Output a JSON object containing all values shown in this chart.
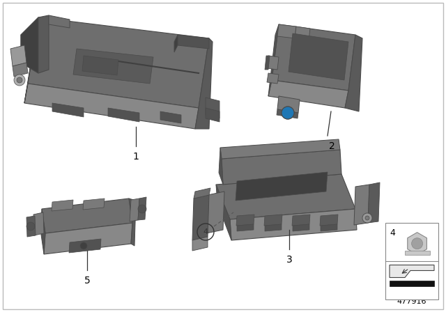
{
  "background_color": "#ffffff",
  "border_color": "#bbbbbb",
  "diagram_number": "477916",
  "text_color": "#000000",
  "number_fontsize": 10,
  "outline_color": "#4a4a4a",
  "colors": {
    "top": "#6e6e6e",
    "mid": "#7a7a7a",
    "front": "#888888",
    "dark": "#525252",
    "darker": "#404040",
    "shadow": "#5a5a5a",
    "light": "#999999",
    "lighter": "#b0b0b0",
    "nut_silver": "#c8c8c8",
    "nut_dark": "#a0a0a0"
  }
}
